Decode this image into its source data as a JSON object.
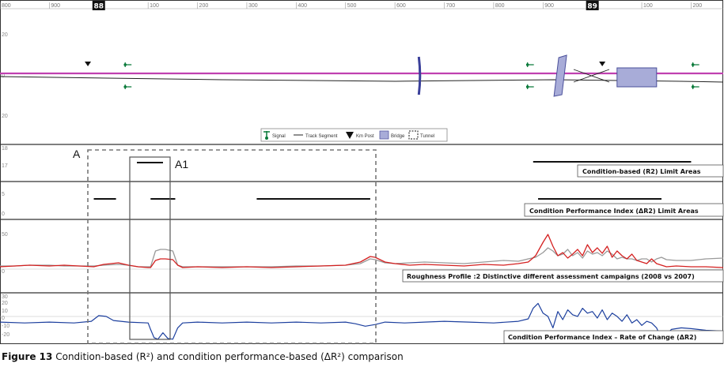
{
  "chart_data": {
    "type": "line",
    "scale": {
      "ticks": [
        {
          "v": 800,
          "label": "800"
        },
        {
          "v": 900,
          "label": "900"
        },
        {
          "v": 1100,
          "label": "100"
        },
        {
          "v": 1200,
          "label": "200"
        },
        {
          "v": 1300,
          "label": "300"
        },
        {
          "v": 1400,
          "label": "400"
        },
        {
          "v": 1500,
          "label": "500"
        },
        {
          "v": 1600,
          "label": "600"
        },
        {
          "v": 1700,
          "label": "700"
        },
        {
          "v": 1800,
          "label": "800"
        },
        {
          "v": 1900,
          "label": "900"
        },
        {
          "v": 2100,
          "label": "100"
        },
        {
          "v": 2200,
          "label": "200"
        }
      ],
      "km_posts": [
        {
          "v": 1000,
          "label": "88"
        },
        {
          "v": 2000,
          "label": "89"
        }
      ],
      "xlim": [
        800,
        2265
      ]
    },
    "track_panel": {
      "yticks": [
        "20",
        "0",
        "20"
      ],
      "km_post_markers": [
        978,
        2020
      ],
      "signals": [
        1060,
        1875,
        2210
      ],
      "bridges": [
        1650,
        1935,
        2090
      ],
      "legend": [
        "Signal",
        "Track Segment",
        "Km Post",
        "Bridge",
        "Tunnel"
      ]
    },
    "r2_limits": {
      "title": "Condition-based (R2) Limit Areas",
      "yticks": [
        "18",
        "17"
      ],
      "segments": [
        [
          1880,
          2200
        ]
      ]
    },
    "dr2_limits": {
      "title": "Condition Performance Index (ΔR2) Limit Areas",
      "yticks": [
        "5",
        "0"
      ],
      "segments": [
        [
          990,
          1035
        ],
        [
          1105,
          1155
        ],
        [
          1320,
          1550
        ],
        [
          1890,
          2140
        ]
      ]
    },
    "roughness": {
      "title": "Roughness Profile :2 Distinctive different assessment campaigns (2008 vs 2007)",
      "yticks": [
        "50",
        "0"
      ],
      "ylim": [
        0,
        60
      ],
      "series": [
        {
          "name": "2008",
          "color": "#d42020",
          "x": [
            800,
            830,
            860,
            900,
            930,
            960,
            990,
            1010,
            1040,
            1060,
            1080,
            1100,
            1105,
            1115,
            1125,
            1135,
            1150,
            1160,
            1170,
            1200,
            1250,
            1300,
            1350,
            1400,
            1450,
            1500,
            1530,
            1550,
            1560,
            1580,
            1600,
            1630,
            1660,
            1700,
            1740,
            1780,
            1820,
            1850,
            1870,
            1885,
            1900,
            1910,
            1920,
            1930,
            1940,
            1950,
            1960,
            1970,
            1980,
            1990,
            2000,
            2010,
            2020,
            2030,
            2040,
            2050,
            2060,
            2070,
            2080,
            2090,
            2100,
            2110,
            2120,
            2130,
            2140,
            2150,
            2170,
            2200,
            2230,
            2265
          ],
          "y": [
            4,
            5,
            6,
            5,
            6,
            5,
            4,
            7,
            9,
            6,
            4,
            3,
            3,
            12,
            14,
            14,
            13,
            6,
            3,
            4,
            3,
            4,
            3,
            4,
            5,
            6,
            10,
            17,
            16,
            10,
            8,
            6,
            7,
            6,
            5,
            7,
            6,
            8,
            10,
            18,
            35,
            45,
            30,
            18,
            22,
            15,
            20,
            26,
            18,
            32,
            22,
            28,
            21,
            30,
            16,
            24,
            18,
            14,
            20,
            12,
            10,
            8,
            14,
            8,
            6,
            4,
            5,
            4,
            4,
            3
          ]
        },
        {
          "name": "2007",
          "color": "#9a9a9a",
          "x": [
            800,
            830,
            860,
            900,
            930,
            960,
            990,
            1010,
            1040,
            1060,
            1080,
            1100,
            1105,
            1115,
            1125,
            1135,
            1150,
            1160,
            1170,
            1200,
            1250,
            1300,
            1350,
            1400,
            1450,
            1500,
            1530,
            1550,
            1560,
            1580,
            1600,
            1630,
            1660,
            1700,
            1740,
            1780,
            1820,
            1850,
            1870,
            1885,
            1900,
            1910,
            1920,
            1930,
            1940,
            1950,
            1960,
            1970,
            1980,
            1990,
            2000,
            2010,
            2020,
            2030,
            2040,
            2050,
            2060,
            2070,
            2080,
            2090,
            2100,
            2110,
            2120,
            2130,
            2140,
            2150,
            2170,
            2200,
            2230,
            2265
          ],
          "y": [
            5,
            5,
            6,
            6,
            5,
            5,
            5,
            6,
            7,
            6,
            4,
            4,
            4,
            24,
            26,
            26,
            24,
            6,
            4,
            4,
            4,
            4,
            4,
            5,
            5,
            6,
            8,
            14,
            13,
            9,
            8,
            9,
            10,
            9,
            8,
            10,
            12,
            11,
            14,
            16,
            22,
            28,
            24,
            18,
            20,
            26,
            18,
            22,
            15,
            24,
            20,
            22,
            18,
            24,
            20,
            14,
            16,
            14,
            14,
            12,
            14,
            14,
            10,
            14,
            16,
            13,
            12,
            12,
            14,
            15
          ]
        }
      ]
    },
    "rate_of_change": {
      "title": "Condition Performance Index – Rate of Change (ΔR2)",
      "yticks": [
        "30",
        "20",
        "10",
        "0",
        "-10",
        "-20"
      ],
      "ylim": [
        -25,
        35
      ],
      "series": [
        {
          "name": "ΔR2",
          "color": "#1c3f9e",
          "x": [
            800,
            850,
            900,
            950,
            985,
            1000,
            1015,
            1030,
            1060,
            1100,
            1105,
            1112,
            1120,
            1130,
            1140,
            1150,
            1160,
            1170,
            1200,
            1250,
            1300,
            1350,
            1400,
            1450,
            1500,
            1520,
            1540,
            1560,
            1580,
            1620,
            1660,
            1700,
            1750,
            1800,
            1850,
            1870,
            1880,
            1890,
            1900,
            1910,
            1920,
            1930,
            1940,
            1950,
            1960,
            1970,
            1980,
            1990,
            2000,
            2010,
            2020,
            2030,
            2040,
            2050,
            2060,
            2070,
            2080,
            2090,
            2100,
            2110,
            2120,
            2130,
            2140,
            2160,
            2180,
            2200,
            2230,
            2265
          ],
          "y": [
            1,
            0,
            1,
            0,
            2,
            9,
            8,
            3,
            1,
            0,
            -8,
            -18,
            -20,
            -12,
            -19,
            -20,
            -6,
            0,
            1,
            0,
            1,
            0,
            1,
            0,
            1,
            -1,
            -4,
            -2,
            1,
            0,
            1,
            2,
            1,
            0,
            2,
            5,
            18,
            24,
            12,
            8,
            -6,
            14,
            4,
            16,
            10,
            8,
            18,
            12,
            14,
            6,
            16,
            4,
            12,
            8,
            2,
            10,
            0,
            4,
            -3,
            2,
            0,
            -6,
            -20,
            -8,
            -6,
            -7,
            -9,
            -10
          ]
        }
      ]
    },
    "annotations": {
      "box_a": "A",
      "box_a1": "A1"
    }
  },
  "caption": {
    "label": "Figure 13",
    "text": "Condition-based (R²) and condition performance-based (ΔR²) comparison"
  }
}
